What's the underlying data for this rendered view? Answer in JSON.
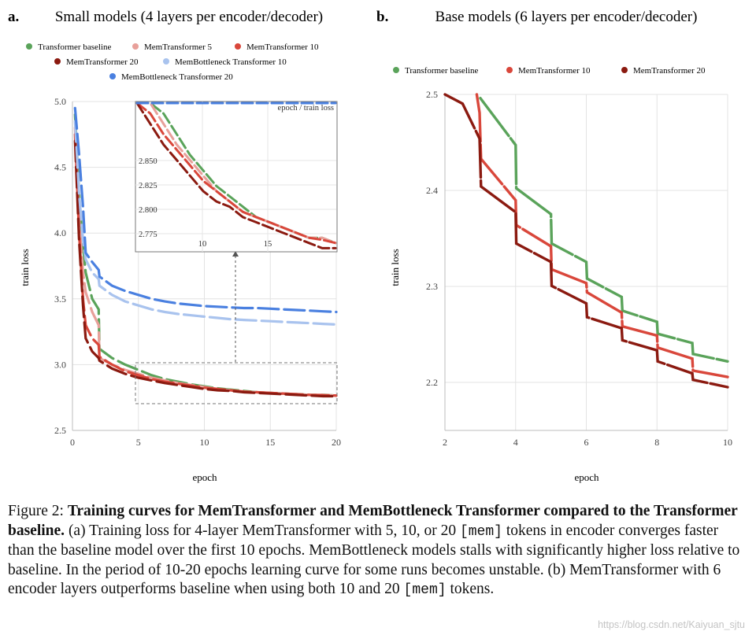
{
  "chart_data": [
    {
      "panel_label": "a.",
      "title": "Small models (4 layers per encoder/decoder)",
      "type": "line",
      "xlabel": "epoch",
      "ylabel": "train loss",
      "xlim": [
        0,
        20
      ],
      "ylim": [
        2.5,
        5.0
      ],
      "xticks": [
        "0",
        "5",
        "10",
        "15",
        "20"
      ],
      "yticks": [
        "2.5",
        "3.0",
        "3.5",
        "4.0",
        "4.5",
        "5.0"
      ],
      "grid": true,
      "legend_location": "top",
      "series": [
        {
          "name": "Transformer baseline",
          "color": "#5aa35a",
          "points": [
            [
              0.2,
              4.9
            ],
            [
              0.5,
              4.3
            ],
            [
              0.8,
              3.9
            ],
            [
              1,
              3.7
            ],
            [
              1.5,
              3.5
            ],
            [
              1.99,
              3.42
            ],
            [
              2.05,
              3.12
            ],
            [
              3,
              3.05
            ],
            [
              4,
              3.0
            ],
            [
              5,
              2.96
            ],
            [
              6,
              2.92
            ],
            [
              7,
              2.89
            ],
            [
              8,
              2.87
            ],
            [
              9,
              2.85
            ],
            [
              10,
              2.835
            ],
            [
              11,
              2.82
            ],
            [
              12,
              2.81
            ],
            [
              13,
              2.8
            ],
            [
              14,
              2.79
            ],
            [
              15,
              2.785
            ],
            [
              16,
              2.78
            ],
            [
              17,
              2.775
            ],
            [
              18,
              2.77
            ],
            [
              19,
              2.77
            ],
            [
              20,
              2.765
            ]
          ]
        },
        {
          "name": "MemTransformer 5",
          "color": "#e8a09a",
          "points": [
            [
              0.2,
              4.8
            ],
            [
              0.5,
              4.1
            ],
            [
              0.8,
              3.7
            ],
            [
              1,
              3.55
            ],
            [
              1.5,
              3.4
            ],
            [
              1.99,
              3.3
            ],
            [
              2.05,
              3.05
            ],
            [
              3,
              3.0
            ],
            [
              4,
              2.96
            ],
            [
              5,
              2.93
            ],
            [
              6,
              2.9
            ],
            [
              7,
              2.88
            ],
            [
              8,
              2.86
            ],
            [
              9,
              2.845
            ],
            [
              10,
              2.83
            ],
            [
              11,
              2.815
            ],
            [
              12,
              2.805
            ],
            [
              13,
              2.795
            ],
            [
              14,
              2.79
            ],
            [
              15,
              2.785
            ],
            [
              16,
              2.78
            ],
            [
              17,
              2.775
            ],
            [
              18,
              2.77
            ],
            [
              19,
              2.77
            ],
            [
              20,
              2.765
            ]
          ]
        },
        {
          "name": "MemTransformer  10",
          "color": "#d9473b",
          "points": [
            [
              0.2,
              4.75
            ],
            [
              0.5,
              4.0
            ],
            [
              0.8,
              3.5
            ],
            [
              1,
              3.3
            ],
            [
              1.5,
              3.2
            ],
            [
              1.99,
              3.15
            ],
            [
              2.05,
              3.06
            ],
            [
              3,
              3.0
            ],
            [
              4,
              2.95
            ],
            [
              5,
              2.92
            ],
            [
              6,
              2.89
            ],
            [
              7,
              2.87
            ],
            [
              8,
              2.855
            ],
            [
              9,
              2.84
            ],
            [
              10,
              2.825
            ],
            [
              11,
              2.815
            ],
            [
              12,
              2.805
            ],
            [
              13,
              2.795
            ],
            [
              14,
              2.79
            ],
            [
              15,
              2.785
            ],
            [
              16,
              2.78
            ],
            [
              17,
              2.775
            ],
            [
              18,
              2.77
            ],
            [
              19,
              2.768
            ],
            [
              20,
              2.765
            ]
          ]
        },
        {
          "name": "MemTransformer 20",
          "color": "#8b1a10",
          "points": [
            [
              0.2,
              4.7
            ],
            [
              0.5,
              3.95
            ],
            [
              0.8,
              3.45
            ],
            [
              1,
              3.2
            ],
            [
              1.5,
              3.1
            ],
            [
              1.99,
              3.05
            ],
            [
              2.05,
              3.03
            ],
            [
              3,
              2.97
            ],
            [
              4,
              2.93
            ],
            [
              5,
              2.9
            ],
            [
              6,
              2.88
            ],
            [
              7,
              2.86
            ],
            [
              8,
              2.845
            ],
            [
              9,
              2.83
            ],
            [
              10,
              2.815
            ],
            [
              11,
              2.805
            ],
            [
              12,
              2.8
            ],
            [
              13,
              2.79
            ],
            [
              14,
              2.785
            ],
            [
              15,
              2.78
            ],
            [
              16,
              2.775
            ],
            [
              17,
              2.77
            ],
            [
              18,
              2.765
            ],
            [
              19,
              2.76
            ],
            [
              20,
              2.76
            ]
          ]
        },
        {
          "name": "MemBottleneck Transformer 10",
          "color": "#a9c3ee",
          "points": [
            [
              0.2,
              4.85
            ],
            [
              0.5,
              4.3
            ],
            [
              0.8,
              3.95
            ],
            [
              1,
              3.8
            ],
            [
              1.5,
              3.7
            ],
            [
              1.99,
              3.65
            ],
            [
              2.05,
              3.6
            ],
            [
              3,
              3.53
            ],
            [
              4,
              3.48
            ],
            [
              5,
              3.45
            ],
            [
              6,
              3.42
            ],
            [
              7,
              3.4
            ],
            [
              8,
              3.385
            ],
            [
              9,
              3.375
            ],
            [
              10,
              3.365
            ],
            [
              11,
              3.355
            ],
            [
              12,
              3.345
            ],
            [
              13,
              3.34
            ],
            [
              14,
              3.335
            ],
            [
              15,
              3.33
            ],
            [
              16,
              3.325
            ],
            [
              17,
              3.32
            ],
            [
              18,
              3.315
            ],
            [
              19,
              3.31
            ],
            [
              20,
              3.305
            ]
          ]
        },
        {
          "name": "MemBottleneck Transformer 20",
          "color": "#4a80e0",
          "points": [
            [
              0.2,
              4.95
            ],
            [
              0.5,
              4.6
            ],
            [
              0.8,
              4.2
            ],
            [
              1,
              3.85
            ],
            [
              1.5,
              3.78
            ],
            [
              1.99,
              3.72
            ],
            [
              2.05,
              3.67
            ],
            [
              3,
              3.6
            ],
            [
              4,
              3.56
            ],
            [
              5,
              3.53
            ],
            [
              6,
              3.5
            ],
            [
              7,
              3.48
            ],
            [
              8,
              3.465
            ],
            [
              9,
              3.455
            ],
            [
              10,
              3.445
            ],
            [
              11,
              3.44
            ],
            [
              12,
              3.435
            ],
            [
              13,
              3.43
            ],
            [
              14,
              3.43
            ],
            [
              15,
              3.425
            ],
            [
              16,
              3.42
            ],
            [
              17,
              3.415
            ],
            [
              18,
              3.41
            ],
            [
              19,
              3.405
            ],
            [
              20,
              3.4
            ]
          ]
        }
      ],
      "inset": {
        "title": "epoch / train loss",
        "xlim": [
          5,
          20
        ],
        "ylim": [
          2.758,
          2.9
        ],
        "xticks": [
          "10",
          "15"
        ],
        "yticks": [
          "2.775",
          "2.800",
          "2.825",
          "2.850"
        ]
      }
    },
    {
      "panel_label": "b.",
      "title": "Base models (6 layers per encoder/decoder)",
      "type": "line",
      "xlabel": "epoch",
      "ylabel": "train loss",
      "xlim": [
        2,
        10
      ],
      "ylim": [
        2.135,
        2.5
      ],
      "xticks": [
        "2",
        "4",
        "6",
        "8",
        "10"
      ],
      "yticks": [
        "2.2",
        "2.3",
        "2.4",
        "2.5"
      ],
      "grid": true,
      "legend_location": "top",
      "series": [
        {
          "name": "Transformer baseline",
          "color": "#5aa35a",
          "points": [
            [
              3,
              2.496
            ],
            [
              4,
              2.445
            ],
            [
              4.02,
              2.398
            ],
            [
              5,
              2.37
            ],
            [
              5.02,
              2.338
            ],
            [
              6,
              2.318
            ],
            [
              6.02,
              2.3
            ],
            [
              7,
              2.28
            ],
            [
              7.02,
              2.265
            ],
            [
              8,
              2.253
            ],
            [
              8.02,
              2.24
            ],
            [
              9,
              2.23
            ],
            [
              9.02,
              2.218
            ],
            [
              10,
              2.21
            ]
          ]
        },
        {
          "name": "MemTransformer  10",
          "color": "#d9473b",
          "points": [
            [
              2.9,
              2.5
            ],
            [
              2.98,
              2.48
            ],
            [
              3.02,
              2.43
            ],
            [
              4,
              2.385
            ],
            [
              4.02,
              2.358
            ],
            [
              5,
              2.335
            ],
            [
              5.02,
              2.31
            ],
            [
              6,
              2.295
            ],
            [
              6.02,
              2.285
            ],
            [
              7,
              2.263
            ],
            [
              7.02,
              2.248
            ],
            [
              8,
              2.238
            ],
            [
              8.02,
              2.225
            ],
            [
              9,
              2.213
            ],
            [
              9.02,
              2.2
            ],
            [
              10,
              2.193
            ]
          ]
        },
        {
          "name": "MemTransformer 20",
          "color": "#8b1a10",
          "points": [
            [
              2,
              2.5
            ],
            [
              2.5,
              2.49
            ],
            [
              2.98,
              2.452
            ],
            [
              3.02,
              2.4
            ],
            [
              4,
              2.372
            ],
            [
              4.02,
              2.338
            ],
            [
              5,
              2.318
            ],
            [
              5.02,
              2.292
            ],
            [
              6,
              2.273
            ],
            [
              6.02,
              2.258
            ],
            [
              7,
              2.246
            ],
            [
              7.02,
              2.233
            ],
            [
              8,
              2.222
            ],
            [
              8.02,
              2.21
            ],
            [
              9,
              2.197
            ],
            [
              9.02,
              2.19
            ],
            [
              10,
              2.182
            ]
          ]
        }
      ]
    }
  ],
  "caption": {
    "prefix": "Figure 2: ",
    "bold": "Training curves for MemTransformer and MemBottleneck Transformer compared to the Transformer baseline.",
    "part1": " (a) Training loss for 4-layer MemTransformer with 5, 10, or 20 ",
    "mem1": "[mem]",
    "part2": " tokens in encoder converges faster than the baseline model over the first 10 epochs. MemBottleneck models stalls with significantly higher loss relative to baseline. In the period of 10-20 epochs learning curve for some runs becomes unstable.  (b) MemTransformer with 6 encoder layers outperforms baseline when using both 10 and 20 ",
    "mem2": "[mem]",
    "part3": " tokens."
  },
  "watermark": "https://blog.csdn.net/Kaiyuan_sjtu"
}
